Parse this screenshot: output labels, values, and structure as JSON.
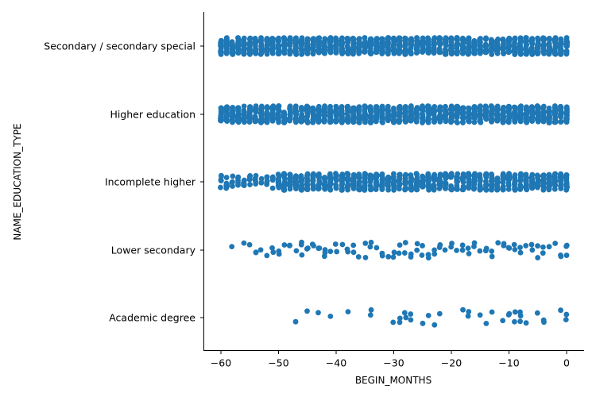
{
  "chart_data": {
    "type": "scatter",
    "subtype": "categorical strip plot (jittered)",
    "xlabel": "BEGIN_MONTHS",
    "ylabel": "NAME_EDUCATION_TYPE",
    "xlim": [
      -64,
      3
    ],
    "x_ticks": [
      -60,
      -50,
      -40,
      -30,
      -20,
      -10,
      0
    ],
    "x_tick_labels": [
      "−60",
      "−50",
      "−40",
      "−30",
      "−20",
      "−10",
      "0"
    ],
    "categories": [
      "Secondary / secondary special",
      "Higher education",
      "Incomplete higher",
      "Lower secondary",
      "Academic degree"
    ],
    "grid": false,
    "legend": "none",
    "color": "#1f77b4",
    "series": [
      {
        "category": "Secondary / secondary special",
        "x_range": [
          -60,
          0
        ],
        "dense": true,
        "density": 1.0
      },
      {
        "category": "Higher education",
        "x_range": [
          -60,
          0
        ],
        "dense": true,
        "density": 0.97
      },
      {
        "category": "Incomplete higher",
        "x_range": [
          -60,
          0
        ],
        "dense": true,
        "density": 0.75,
        "sparse_x": [
          -60,
          -59,
          -58,
          -57,
          -56,
          -55,
          -54,
          -53,
          -52,
          -51
        ]
      },
      {
        "category": "Lower secondary",
        "x_range": [
          -58,
          0
        ],
        "dense": false,
        "x": [
          -58,
          -56,
          -55,
          -54,
          -54,
          -53,
          -52,
          -51,
          -51,
          -50,
          -50,
          -49,
          -48,
          -48,
          -47,
          -46,
          -46,
          -46,
          -45,
          -45,
          -44,
          -44,
          -43,
          -43,
          -42,
          -42,
          -42,
          -41,
          -40,
          -40,
          -39,
          -38,
          -38,
          -37,
          -37,
          -36,
          -35,
          -35,
          -34,
          -34,
          -33,
          -32,
          -32,
          -31,
          -30,
          -30,
          -29,
          -29,
          -28,
          -28,
          -27,
          -27,
          -26,
          -26,
          -25,
          -25,
          -24,
          -24,
          -23,
          -23,
          -22,
          -22,
          -21,
          -20,
          -20,
          -19,
          -18,
          -18,
          -17,
          -17,
          -16,
          -16,
          -15,
          -14,
          -14,
          -13,
          -13,
          -12,
          -11,
          -11,
          -10,
          -10,
          -9,
          -9,
          -8,
          -8,
          -7,
          -6,
          -6,
          -5,
          -5,
          -4,
          -4,
          -3,
          -2,
          -1,
          -1,
          0,
          0,
          0
        ]
      },
      {
        "category": "Academic degree",
        "x_range": [
          -47,
          0
        ],
        "dense": false,
        "x": [
          -47,
          -45,
          -43,
          -41,
          -38,
          -34,
          -34,
          -30,
          -29,
          -29,
          -28,
          -28,
          -27,
          -27,
          -25,
          -24,
          -23,
          -22,
          -18,
          -17,
          -17,
          -15,
          -14,
          -13,
          -11,
          -10,
          -10,
          -9,
          -9,
          -8,
          -8,
          -8,
          -7,
          -5,
          -4,
          -4,
          -1,
          0,
          0
        ]
      }
    ]
  }
}
